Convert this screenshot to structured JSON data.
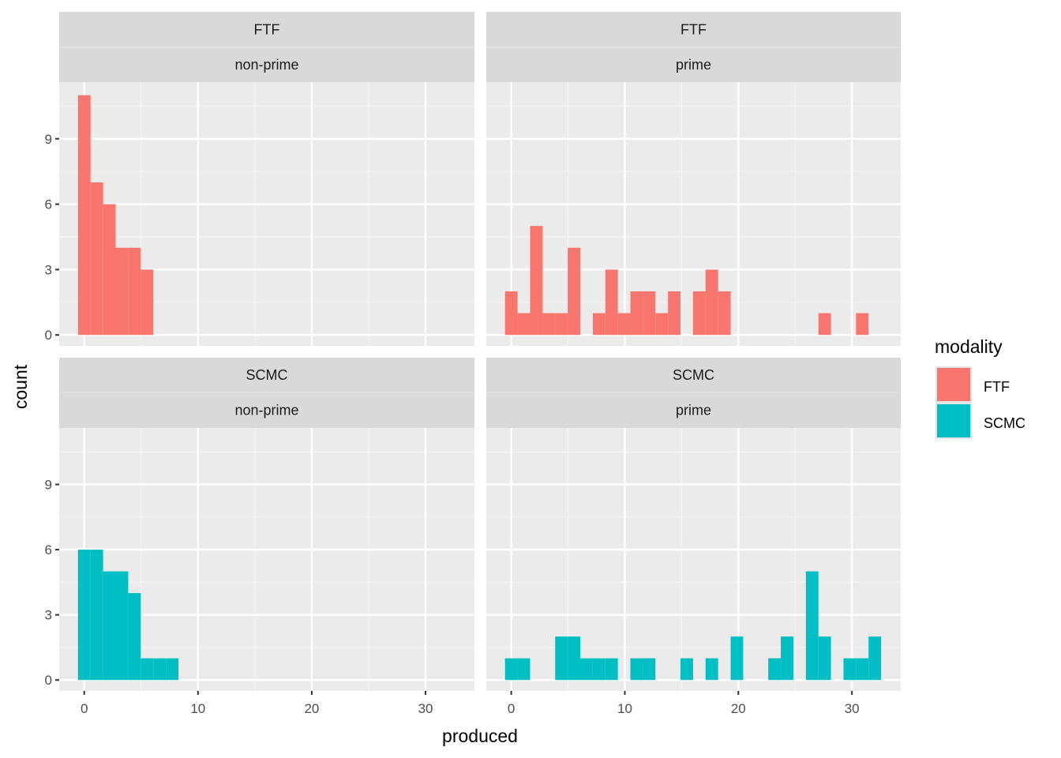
{
  "chart_data": {
    "type": "bar",
    "subtype": "faceted-histogram",
    "xlabel": "produced",
    "ylabel": "count",
    "x_ticks": [
      0,
      10,
      20,
      30
    ],
    "y_ticks": [
      0,
      3,
      6,
      9
    ],
    "xlim": [
      -2.2,
      34.3
    ],
    "ylim": [
      -0.5,
      11.6
    ],
    "bins": 30,
    "bin_start": -0.55,
    "bin_width": 1.104,
    "grid": true,
    "legend": {
      "title": "modality",
      "position": "right",
      "entries": [
        {
          "label": "FTF",
          "color": "#F8766D"
        },
        {
          "label": "SCMC",
          "color": "#00BFC4"
        }
      ]
    },
    "panels": [
      {
        "row_strip": "FTF",
        "col_strip": "non-prime",
        "fill": "#F8766D",
        "counts": [
          11,
          7,
          6,
          4,
          4,
          3,
          0,
          0,
          0,
          0,
          0,
          0,
          0,
          0,
          0,
          0,
          0,
          0,
          0,
          0,
          0,
          0,
          0,
          0,
          0,
          0,
          0,
          0,
          0,
          0
        ]
      },
      {
        "row_strip": "FTF",
        "col_strip": "prime",
        "fill": "#F8766D",
        "counts": [
          2,
          1,
          5,
          1,
          1,
          4,
          0,
          1,
          3,
          1,
          2,
          2,
          1,
          2,
          0,
          2,
          3,
          2,
          0,
          0,
          0,
          0,
          0,
          0,
          0,
          1,
          0,
          0,
          1,
          0
        ]
      },
      {
        "row_strip": "SCMC",
        "col_strip": "non-prime",
        "fill": "#00BFC4",
        "counts": [
          6,
          6,
          5,
          5,
          4,
          1,
          1,
          1,
          0,
          0,
          0,
          0,
          0,
          0,
          0,
          0,
          0,
          0,
          0,
          0,
          0,
          0,
          0,
          0,
          0,
          0,
          0,
          0,
          0,
          0
        ]
      },
      {
        "row_strip": "SCMC",
        "col_strip": "prime",
        "fill": "#00BFC4",
        "counts": [
          1,
          1,
          0,
          0,
          2,
          2,
          1,
          1,
          1,
          0,
          1,
          1,
          0,
          0,
          1,
          0,
          1,
          0,
          2,
          0,
          0,
          1,
          2,
          0,
          5,
          2,
          0,
          1,
          1,
          2
        ]
      }
    ]
  }
}
